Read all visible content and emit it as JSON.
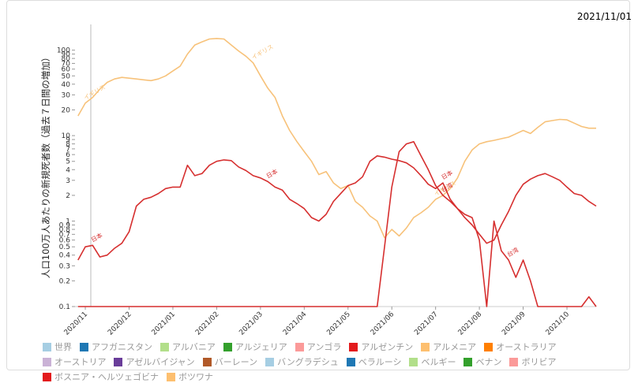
{
  "date": "2021/11/01",
  "chart_data": {
    "type": "line",
    "ylabel": "人口100万人あたりの新規死者数（過去７日間の増加）",
    "log_scale": true,
    "ylim": [
      0.1,
      200
    ],
    "yticks": [
      0.1,
      0.2,
      0.3,
      0.4,
      0.5,
      0.6,
      0.7,
      0.8,
      0.9,
      1,
      2,
      3,
      4,
      5,
      6,
      7,
      8,
      9,
      10,
      20,
      30,
      40,
      50,
      60,
      70,
      80,
      90,
      100
    ],
    "categories": [
      null,
      "2020/11",
      null,
      null,
      null,
      null,
      null,
      "2020/12",
      null,
      null,
      null,
      null,
      null,
      "2021/01",
      null,
      null,
      null,
      null,
      null,
      "2021/02",
      null,
      null,
      null,
      null,
      null,
      "2021/03",
      null,
      null,
      null,
      null,
      null,
      "2021/04",
      null,
      null,
      null,
      null,
      null,
      "2021/05",
      null,
      null,
      null,
      null,
      null,
      "2021/06",
      null,
      null,
      null,
      null,
      null,
      "2021/07",
      null,
      null,
      null,
      null,
      null,
      "2021/08",
      null,
      null,
      null,
      null,
      null,
      "2021/09",
      null,
      null,
      null,
      null,
      null,
      "2021/10",
      null,
      null,
      null,
      null
    ],
    "series": [
      {
        "name": "イギリス",
        "color": "#f7c27a",
        "values": [
          17,
          24,
          28,
          35,
          42,
          46,
          48,
          47,
          46,
          45,
          44,
          46,
          50,
          57,
          65,
          90,
          115,
          125,
          135,
          137,
          135,
          115,
          98,
          85,
          71,
          50,
          36,
          28,
          17,
          11.5,
          8.5,
          6.5,
          5,
          3.5,
          3.8,
          2.8,
          2.4,
          2.6,
          1.7,
          1.45,
          1.15,
          1.0,
          0.64,
          0.8,
          0.67,
          0.83,
          1.1,
          1.25,
          1.45,
          1.8,
          2.0,
          2.4,
          3.2,
          5,
          6.8,
          8,
          8.5,
          8.8,
          9.2,
          9.6,
          10.5,
          11.5,
          10.6,
          12.5,
          14.5,
          15,
          15.5,
          15.3,
          14,
          12.8,
          12.2,
          12.2
        ]
      },
      {
        "name": "日本",
        "color": "#d62f2f",
        "values": [
          0.35,
          0.5,
          0.52,
          0.38,
          0.4,
          0.48,
          0.55,
          0.75,
          1.5,
          1.8,
          1.9,
          2.1,
          2.4,
          2.5,
          2.5,
          4.5,
          3.4,
          3.6,
          4.5,
          5.0,
          5.2,
          5.1,
          4.3,
          3.9,
          3.4,
          3.2,
          2.9,
          2.5,
          2.3,
          1.8,
          1.6,
          1.4,
          1.1,
          1.0,
          1.2,
          1.7,
          2.1,
          2.6,
          2.8,
          3.3,
          5,
          5.8,
          5.6,
          5.3,
          5.1,
          4.8,
          4.2,
          3.4,
          2.7,
          2.4,
          2.8,
          1.8,
          1.4,
          1.1,
          0.9,
          0.7,
          0.55,
          0.6,
          0.9,
          1.3,
          2.0,
          2.7,
          3.1,
          3.4,
          3.6,
          3.3,
          3.0,
          2.5,
          2.1,
          2.0,
          1.7,
          1.5
        ]
      },
      {
        "name": "台湾",
        "color": "#d62f2f",
        "values": [
          0.1,
          0.1,
          0.1,
          0.1,
          0.1,
          0.1,
          0.1,
          0.1,
          0.1,
          0.1,
          0.1,
          0.1,
          0.1,
          0.1,
          0.1,
          0.1,
          0.1,
          0.1,
          0.1,
          0.1,
          0.1,
          0.1,
          0.1,
          0.1,
          0.1,
          0.1,
          0.1,
          0.1,
          0.1,
          0.1,
          0.1,
          0.1,
          0.1,
          0.1,
          0.1,
          0.1,
          0.1,
          0.1,
          0.1,
          0.1,
          0.1,
          0.1,
          0.5,
          2.5,
          6.5,
          8,
          8.5,
          5.8,
          4,
          2.6,
          2.0,
          1.7,
          1.4,
          1.2,
          1.1,
          0.6,
          0.1,
          1.0,
          0.45,
          0.35,
          0.22,
          0.35,
          0.2,
          0.1,
          0.1,
          0.1,
          0.1,
          0.1,
          0.1,
          0.1,
          0.13,
          0.1
        ]
      }
    ],
    "legend": [
      {
        "name": "世界",
        "color": "#a6cee3"
      },
      {
        "name": "アフガニスタン",
        "color": "#1f78b4"
      },
      {
        "name": "アルバニア",
        "color": "#b2df8a"
      },
      {
        "name": "アルジェリア",
        "color": "#33a02c"
      },
      {
        "name": "アンゴラ",
        "color": "#fb9a99"
      },
      {
        "name": "アルゼンチン",
        "color": "#e31a1c"
      },
      {
        "name": "アルメニア",
        "color": "#fdbf6f"
      },
      {
        "name": "オーストラリア",
        "color": "#ff7f00"
      },
      {
        "name": "オーストリア",
        "color": "#cab2d6"
      },
      {
        "name": "アゼルバイジャン",
        "color": "#6a3d9a"
      },
      {
        "name": "バーレーン",
        "color": "#b15928"
      },
      {
        "name": "バングラデシュ",
        "color": "#a6cee3"
      },
      {
        "name": "ベラルーシ",
        "color": "#1f78b4"
      },
      {
        "name": "ベルギー",
        "color": "#b2df8a"
      },
      {
        "name": "ベナン",
        "color": "#33a02c"
      },
      {
        "name": "ボリビア",
        "color": "#fb9a99"
      },
      {
        "name": "ボスニア・ヘルツェゴビナ",
        "color": "#e31a1c"
      },
      {
        "name": "ボツワナ",
        "color": "#fdbf6f"
      }
    ]
  }
}
